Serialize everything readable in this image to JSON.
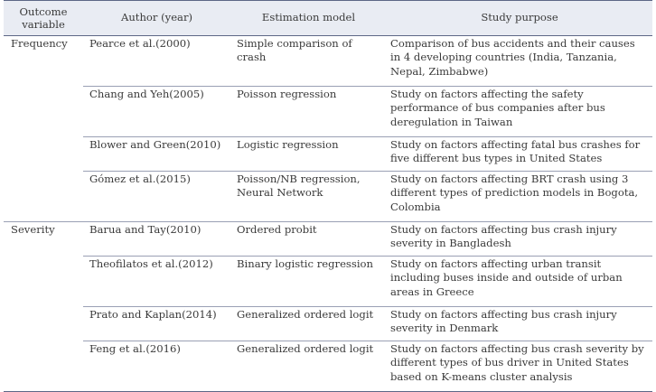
{
  "table": {
    "headers": {
      "outcome_line1": "Outcome",
      "outcome_line2": "variable",
      "author": "Author (year)",
      "model": "Estimation model",
      "purpose": "Study purpose"
    },
    "rows": [
      {
        "outcome": "Frequency",
        "author": "Pearce et al.(2000)",
        "model": "Simple comparison of crash",
        "purpose": "Comparison of bus accidents and their causes in 4 developing countries (India, Tanzania, Nepal, Zimbabwe)"
      },
      {
        "outcome": "",
        "author": "Chang and Yeh(2005)",
        "model": "Poisson regression",
        "purpose": "Study on factors affecting the safety performance of bus companies after bus deregulation in Taiwan"
      },
      {
        "outcome": "",
        "author": "Blower and Green(2010)",
        "model": "Logistic regression",
        "purpose": "Study on factors affecting fatal bus crashes for five different bus types in United States"
      },
      {
        "outcome": "",
        "author": "Gómez et al.(2015)",
        "model": "Poisson/NB regression, Neural Network",
        "purpose": "Study on factors affecting BRT crash using 3 different types of prediction models in Bogota, Colombia"
      },
      {
        "outcome": "Severity",
        "author": "Barua and Tay(2010)",
        "model": "Ordered probit",
        "purpose": "Study on factors affecting bus crash injury severity in Bangladesh"
      },
      {
        "outcome": "",
        "author": "Theofilatos et al.(2012)",
        "model": "Binary logistic regression",
        "purpose": "Study on factors affecting urban transit including buses inside and outside of urban areas in Greece"
      },
      {
        "outcome": "",
        "author": "Prato and Kaplan(2014)",
        "model": "Generalized ordered logit",
        "purpose": "Study on factors affecting bus crash injury severity in Denmark"
      },
      {
        "outcome": "",
        "author": "Feng et al.(2016)",
        "model": "Generalized ordered logit",
        "purpose": "Study on factors affecting bus crash severity by different types of bus driver in United States based on K-means cluster analysis"
      }
    ]
  }
}
